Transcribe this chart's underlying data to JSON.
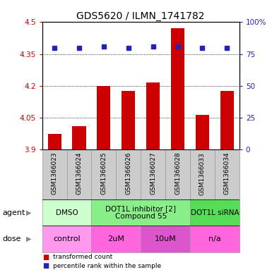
{
  "title": "GDS5620 / ILMN_1741782",
  "samples": [
    "GSM1366023",
    "GSM1366024",
    "GSM1366025",
    "GSM1366026",
    "GSM1366027",
    "GSM1366028",
    "GSM1366033",
    "GSM1366034"
  ],
  "bar_values": [
    3.975,
    4.01,
    4.2,
    4.175,
    4.215,
    4.47,
    4.065,
    4.175
  ],
  "bar_bottom": 3.9,
  "percentile_right": [
    80,
    80,
    81,
    80,
    81,
    81,
    80,
    80
  ],
  "ylim_left": [
    3.9,
    4.5
  ],
  "ylim_right": [
    0,
    100
  ],
  "yticks_left": [
    3.9,
    4.05,
    4.2,
    4.35,
    4.5
  ],
  "yticks_right": [
    0,
    25,
    50,
    75,
    100
  ],
  "ytick_labels_left": [
    "3.9",
    "4.05",
    "4.2",
    "4.35",
    "4.5"
  ],
  "ytick_labels_right": [
    "0",
    "25",
    "50",
    "75",
    "100%"
  ],
  "bar_color": "#cc0000",
  "percentile_color": "#2222bb",
  "grid_color": "#000000",
  "sample_bg_color": "#cccccc",
  "agent_groups": [
    {
      "label": "DMSO",
      "start": 0,
      "end": 2,
      "color": "#ccffcc"
    },
    {
      "label": "DOT1L inhibitor [2]\nCompound 55",
      "start": 2,
      "end": 6,
      "color": "#88ee88"
    },
    {
      "label": "DOT1L siRNA",
      "start": 6,
      "end": 8,
      "color": "#55dd55"
    }
  ],
  "dose_groups": [
    {
      "label": "control",
      "start": 0,
      "end": 2,
      "color": "#ff99ee"
    },
    {
      "label": "2uM",
      "start": 2,
      "end": 4,
      "color": "#ff66dd"
    },
    {
      "label": "10uM",
      "start": 4,
      "end": 6,
      "color": "#dd55cc"
    },
    {
      "label": "n/a",
      "start": 6,
      "end": 8,
      "color": "#ff66dd"
    }
  ],
  "legend_items": [
    {
      "label": "transformed count",
      "color": "#cc0000"
    },
    {
      "label": "percentile rank within the sample",
      "color": "#2222bb"
    }
  ],
  "bar_width": 0.55,
  "sample_label_fontsize": 6.5,
  "title_fontsize": 10,
  "tick_fontsize": 7.5,
  "agent_label": "agent",
  "dose_label": "dose",
  "row_label_fontsize": 8,
  "agent_fontsize": 7.5,
  "dose_fontsize": 8
}
